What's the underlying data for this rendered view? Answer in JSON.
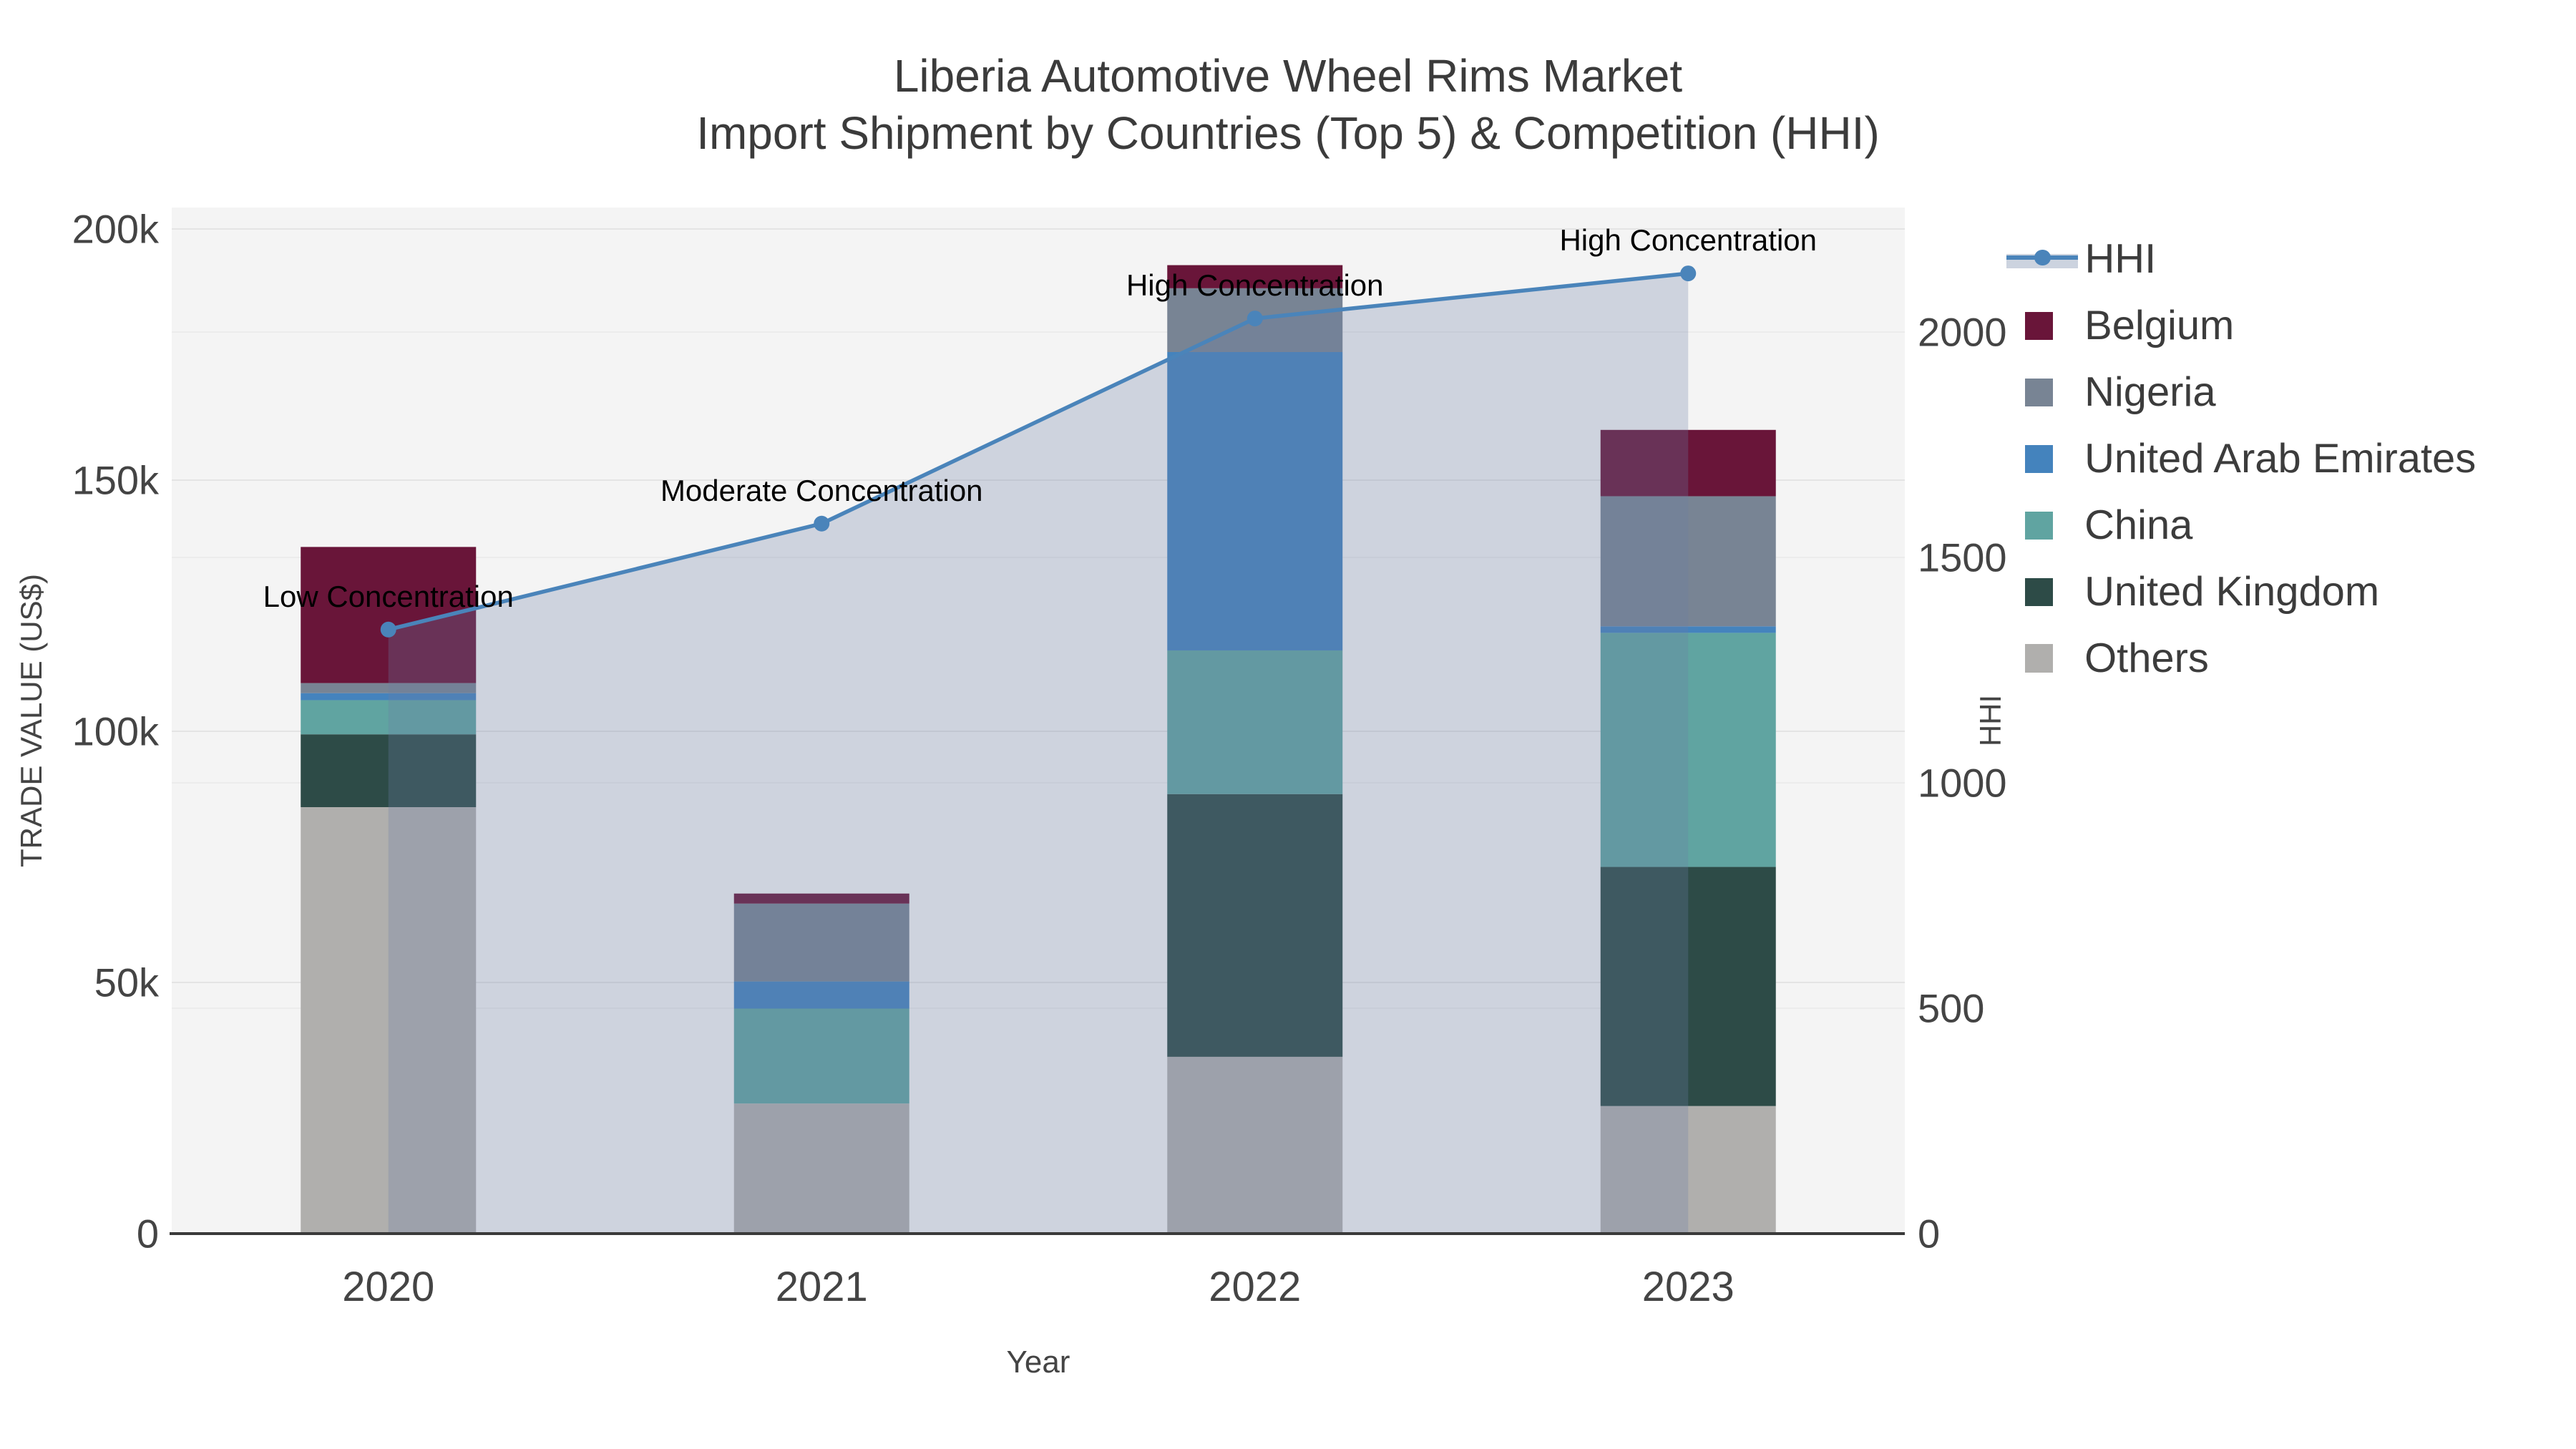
{
  "title": {
    "line1": "Liberia Automotive Wheel Rims Market",
    "line2": "Import Shipment by Countries (Top 5) & Competition (HHI)"
  },
  "legend": {
    "items": [
      {
        "label": "HHI",
        "type": "line",
        "color": "#4a84ba",
        "band_color": "#ccd3df"
      },
      {
        "label": "Belgium",
        "type": "swatch",
        "color": "#691539"
      },
      {
        "label": "Nigeria",
        "type": "swatch",
        "color": "#788494"
      },
      {
        "label": "United Arab Emirates",
        "type": "swatch",
        "color": "#4483bd"
      },
      {
        "label": "China",
        "type": "swatch",
        "color": "#60a4a1"
      },
      {
        "label": "United Kingdom",
        "type": "swatch",
        "color": "#2d4b47"
      },
      {
        "label": "Others",
        "type": "swatch",
        "color": "#b0afad"
      }
    ]
  },
  "chart_data": {
    "type": "bar",
    "subtype": "stacked-bar-with-line-overlay",
    "title": "Liberia Automotive Wheel Rims Market — Import Shipment by Countries (Top 5) & Competition (HHI)",
    "categories": [
      "2020",
      "2021",
      "2022",
      "2023"
    ],
    "xlabel": "Year",
    "ylabel": "TRADE VALUE (US$)",
    "ylabel_right": "HHI",
    "ylim": [
      0,
      200000
    ],
    "ylim_right": [
      0,
      2000
    ],
    "yticks": [
      {
        "value": 0,
        "label": "0"
      },
      {
        "value": 50000,
        "label": "50k"
      },
      {
        "value": 100000,
        "label": "100k"
      },
      {
        "value": 150000,
        "label": "150k"
      },
      {
        "value": 200000,
        "label": "200k"
      }
    ],
    "yticks_right": [
      {
        "value": 0,
        "label": "0"
      },
      {
        "value": 500,
        "label": "500"
      },
      {
        "value": 1000,
        "label": "1000"
      },
      {
        "value": 1500,
        "label": "1500"
      },
      {
        "value": 2000,
        "label": "2000"
      }
    ],
    "grid": true,
    "legend_position": "right",
    "stack_order_bottom_to_top": [
      "Others",
      "United Kingdom",
      "China",
      "United Arab Emirates",
      "Nigeria",
      "Belgium"
    ],
    "series": [
      {
        "name": "Belgium",
        "color": "#691539",
        "values": [
          27100,
          2000,
          4600,
          13200
        ]
      },
      {
        "name": "Nigeria",
        "color": "#788494",
        "values": [
          2000,
          15500,
          12700,
          25900
        ]
      },
      {
        "name": "United Arab Emirates",
        "color": "#4483bd",
        "values": [
          1400,
          5400,
          59400,
          1300
        ]
      },
      {
        "name": "China",
        "color": "#60a4a1",
        "values": [
          6800,
          18900,
          28600,
          46600
        ]
      },
      {
        "name": "United Kingdom",
        "color": "#2d4b47",
        "values": [
          14500,
          0,
          52300,
          47600
        ]
      },
      {
        "name": "Others",
        "color": "#b0afad",
        "values": [
          84900,
          25900,
          35200,
          25400
        ]
      }
    ],
    "totals": [
      136700,
      67700,
      192800,
      160000
    ],
    "line_series": {
      "name": "HHI",
      "axis": "right",
      "color": "#4a84ba",
      "area_fill": "rgba(106,126,166,0.28)",
      "values": [
        1340,
        1575,
        2030,
        2130
      ]
    },
    "annotations": [
      {
        "category": "2020",
        "text": "Low Concentration"
      },
      {
        "category": "2021",
        "text": "Moderate Concentration"
      },
      {
        "category": "2022",
        "text": "High Concentration"
      },
      {
        "category": "2023",
        "text": "High Concentration"
      }
    ]
  },
  "colors": {
    "page_bg": "#ffffff",
    "plot_bg": "#f4f4f4",
    "grid_left": "#e4e4e4",
    "grid_right": "#ececec",
    "axis_line": "#3a3a3a",
    "tick_text": "#444444",
    "title_text": "#3b3b3b",
    "annotation_text": "#000000"
  }
}
